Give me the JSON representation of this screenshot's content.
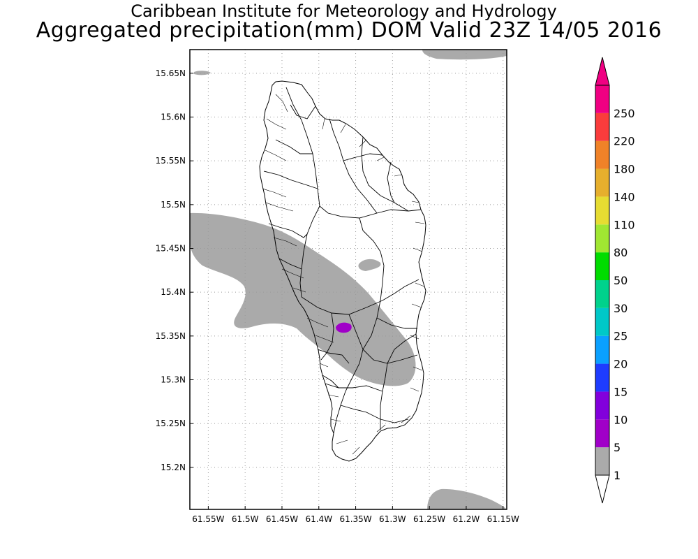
{
  "title_line1": "Caribbean Institute for Meteorology and Hydrology",
  "title_line2": "Aggregated precipitation(mm) DOM Valid 23Z 14/05 2016",
  "map": {
    "lon_range": [
      61.575,
      61.145
    ],
    "lat_range": [
      15.152,
      15.677
    ],
    "lon_ticks": [
      {
        "value": 61.55,
        "label": "61.55W"
      },
      {
        "value": 61.5,
        "label": "61.5W"
      },
      {
        "value": 61.45,
        "label": "61.45W"
      },
      {
        "value": 61.4,
        "label": "61.4W"
      },
      {
        "value": 61.35,
        "label": "61.35W"
      },
      {
        "value": 61.3,
        "label": "61.3W"
      },
      {
        "value": 61.25,
        "label": "61.25W"
      },
      {
        "value": 61.2,
        "label": "61.2W"
      },
      {
        "value": 61.15,
        "label": "61.15W"
      }
    ],
    "lat_ticks": [
      {
        "value": 15.65,
        "label": "15.65N"
      },
      {
        "value": 15.6,
        "label": "15.6N"
      },
      {
        "value": 15.55,
        "label": "15.55N"
      },
      {
        "value": 15.5,
        "label": "15.5N"
      },
      {
        "value": 15.45,
        "label": "15.45N"
      },
      {
        "value": 15.4,
        "label": "15.4N"
      },
      {
        "value": 15.35,
        "label": "15.35N"
      },
      {
        "value": 15.3,
        "label": "15.3N"
      },
      {
        "value": 15.25,
        "label": "15.25N"
      },
      {
        "value": 15.2,
        "label": "15.2N"
      }
    ],
    "grid": "dotted"
  },
  "colorbar": {
    "levels": [
      "1",
      "5",
      "10",
      "15",
      "20",
      "25",
      "30",
      "50",
      "80",
      "110",
      "140",
      "180",
      "220",
      "250"
    ],
    "colors": [
      "#aaaaaa",
      "#a000c8",
      "#8200dc",
      "#1e3cff",
      "#0aa0ff",
      "#00c8c8",
      "#00d28c",
      "#00dc00",
      "#a0e632",
      "#e6dc32",
      "#e6af2d",
      "#f08228",
      "#fa3c3c",
      "#f00082"
    ]
  }
}
